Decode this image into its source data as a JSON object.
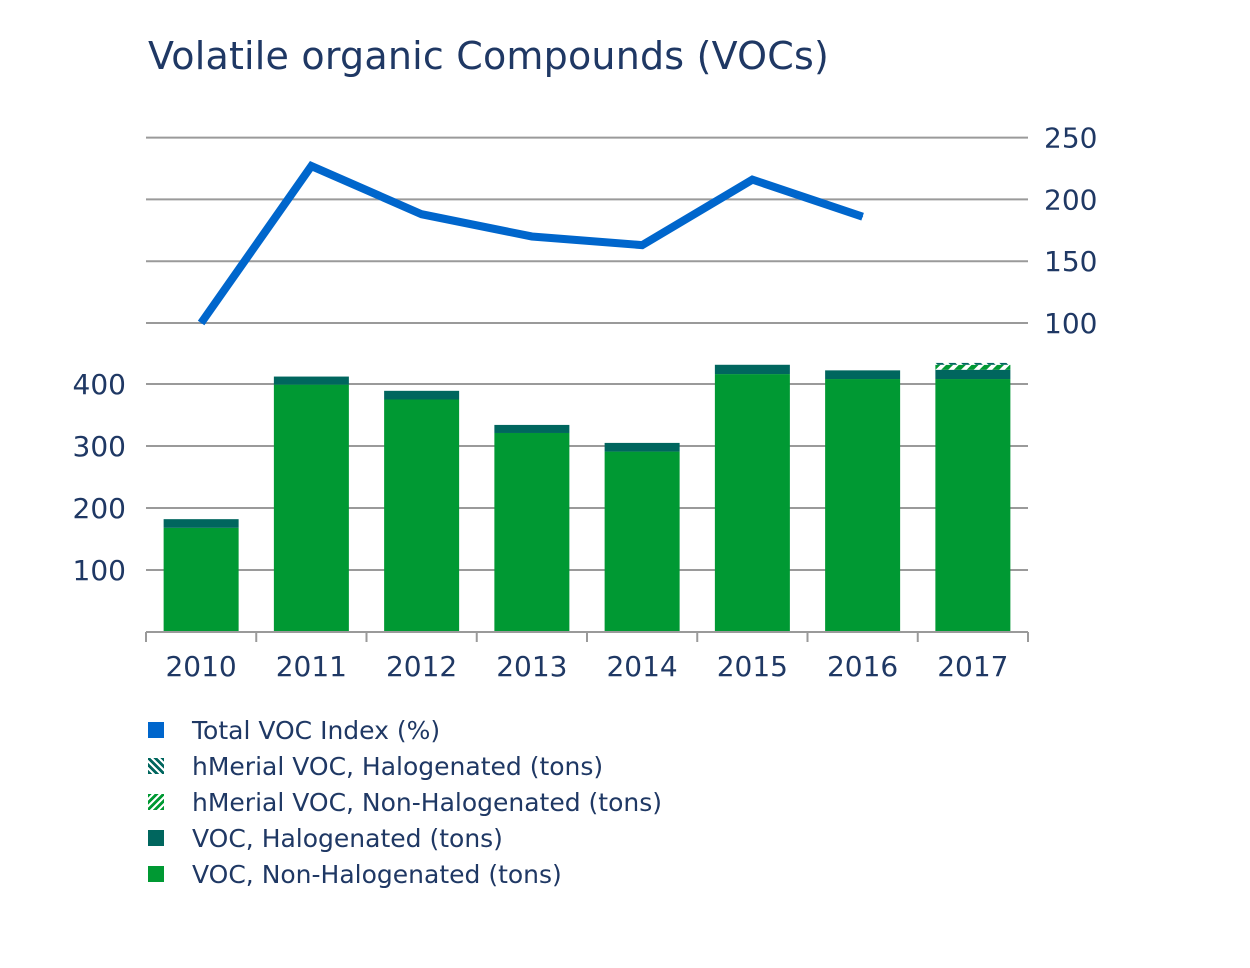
{
  "chart_data": {
    "type": "bar",
    "title": "Volatile organic Compounds (VOCs)",
    "categories": [
      "2010",
      "2011",
      "2012",
      "2013",
      "2014",
      "2015",
      "2016",
      "2017"
    ],
    "series": [
      {
        "name": "VOC, Non-Halogenated (tons)",
        "kind": "bar",
        "axis": "left",
        "color": "#009933",
        "values": [
          168,
          399,
          375,
          321,
          291,
          416,
          408,
          408
        ]
      },
      {
        "name": "VOC, Halogenated (tons)",
        "kind": "bar",
        "axis": "left",
        "color": "#00665e",
        "values": [
          14,
          13,
          14,
          13,
          14,
          15,
          14,
          15
        ]
      },
      {
        "name": "hMerial VOC, Non-Halogenated (tons)",
        "kind": "bar",
        "axis": "left",
        "color": "#009933",
        "pattern": "hatch-forward",
        "values": [
          0,
          0,
          0,
          0,
          0,
          0,
          0,
          8
        ]
      },
      {
        "name": "hMerial VOC, Halogenated (tons)",
        "kind": "bar",
        "axis": "left",
        "color": "#00665e",
        "pattern": "hatch-back",
        "values": [
          0,
          0,
          0,
          0,
          0,
          0,
          0,
          3
        ]
      },
      {
        "name": "Total VOC Index (%)",
        "kind": "line",
        "axis": "right",
        "color": "#0066cc",
        "values": [
          100,
          227,
          188,
          170,
          163,
          216,
          186,
          null
        ]
      }
    ],
    "y_left": {
      "ticks": [
        "100",
        "200",
        "300",
        "400"
      ],
      "min": 0,
      "max": 400
    },
    "y_right": {
      "ticks": [
        "100",
        "150",
        "200",
        "250"
      ],
      "min": 100,
      "max": 250
    },
    "legend": {
      "position": "bottom-left",
      "order": [
        "Total VOC Index (%)",
        "hMerial VOC, Halogenated (tons)",
        "hMerial VOC, Non-Halogenated (tons)",
        "VOC, Halogenated (tons)",
        "VOC, Non-Halogenated (tons)"
      ]
    },
    "grid": true
  }
}
